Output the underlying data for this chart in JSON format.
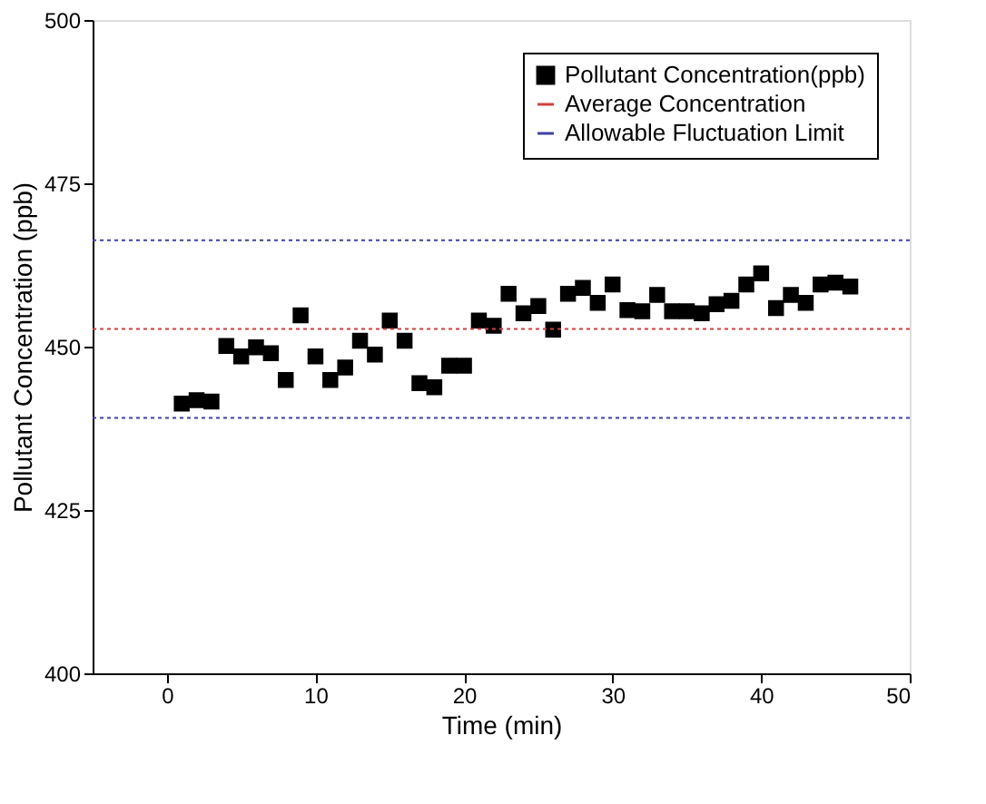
{
  "chart_data": {
    "type": "scatter",
    "xlabel": "Time (min)",
    "ylabel": "Pollutant Concentration (ppb)",
    "x": [
      1,
      2,
      3,
      4,
      5,
      6,
      7,
      8,
      9,
      10,
      11,
      12,
      13,
      14,
      15,
      16,
      17,
      18,
      19,
      20,
      21,
      22,
      23,
      24,
      25,
      26,
      27,
      28,
      29,
      30,
      31,
      32,
      33,
      34,
      35,
      36,
      37,
      38,
      39,
      40,
      41,
      42,
      43,
      44,
      45,
      46
    ],
    "series": [
      {
        "name": "Pollutant Concentration(ppb)",
        "color": "#000000",
        "values": [
          441.3,
          441.8,
          441.6,
          450.1,
          448.5,
          449.9,
          449.0,
          444.9,
          454.8,
          448.5,
          444.9,
          446.8,
          450.9,
          448.8,
          454.0,
          450.9,
          444.4,
          443.8,
          447.1,
          447.1,
          454.0,
          453.2,
          458.1,
          455.1,
          456.2,
          452.6,
          458.1,
          459.0,
          456.7,
          459.5,
          455.6,
          455.4,
          457.9,
          455.4,
          455.4,
          455.1,
          456.5,
          457.0,
          459.5,
          461.2,
          455.9,
          457.9,
          456.7,
          459.5,
          459.8,
          459.2
        ]
      }
    ],
    "ref_lines": [
      {
        "axis": "y",
        "value": 452.7,
        "label": "Average Concentration",
        "color": "#d04040",
        "line_style": "dotted"
      },
      {
        "axis": "y",
        "value": 466.3,
        "label": "Allowable Fluctuation Limit",
        "color": "#4040a0",
        "line_style": "dotted"
      },
      {
        "axis": "y",
        "value": 439.1,
        "color": "#4040a0",
        "line_style": "dotted"
      }
    ],
    "marker": "square",
    "xlim": [
      -5,
      50
    ],
    "xticks": [
      0,
      10,
      20,
      30,
      40,
      50
    ],
    "ylim": [
      400,
      500
    ],
    "yticks": [
      400,
      425,
      450,
      475,
      500
    ],
    "grid": false,
    "legend": "top right"
  }
}
